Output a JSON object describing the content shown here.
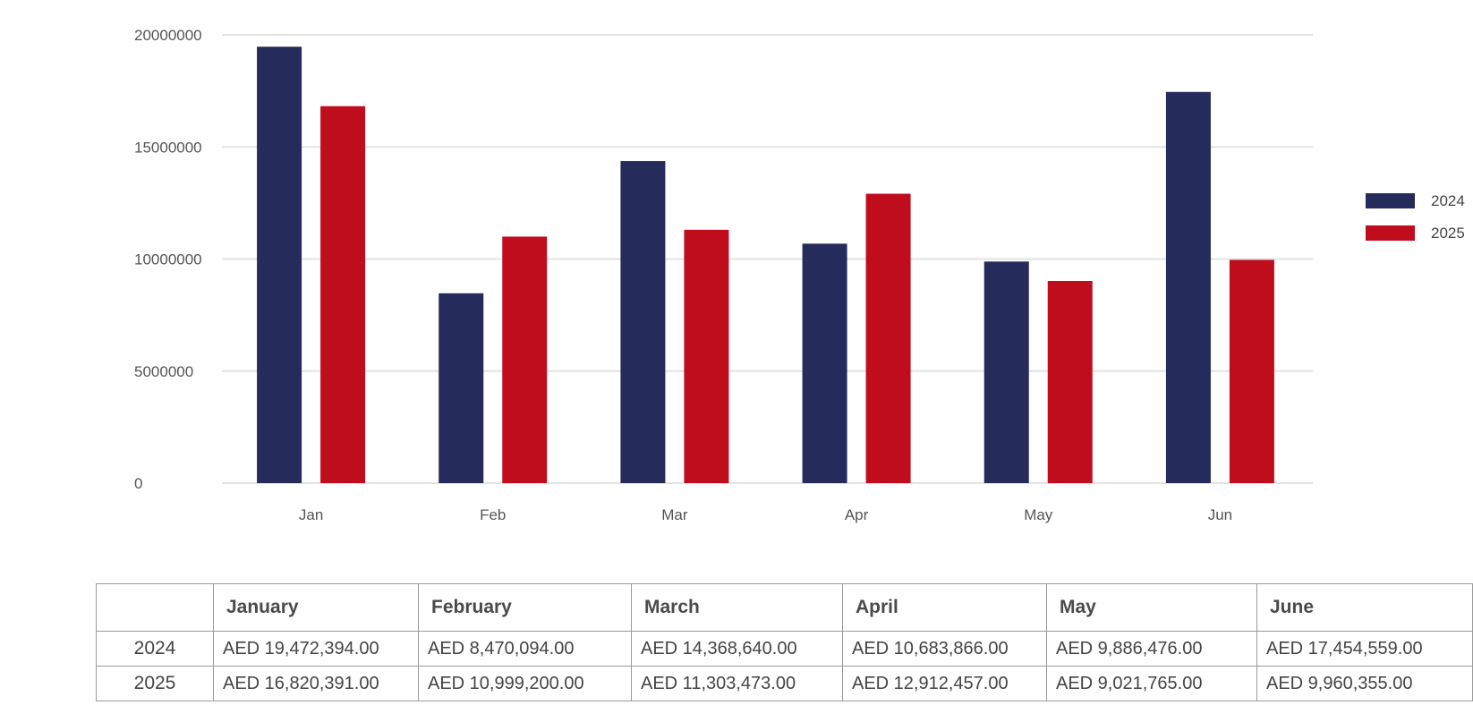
{
  "chart_data": {
    "type": "bar",
    "categories": [
      "Jan",
      "Feb",
      "Mar",
      "Apr",
      "May",
      "Jun"
    ],
    "series": [
      {
        "name": "2024",
        "color": "#252b5a",
        "values": [
          19472394,
          8470094,
          14368640,
          10683866,
          9886476,
          17454559
        ]
      },
      {
        "name": "2025",
        "color": "#bf0d1e",
        "values": [
          16820391,
          10999200,
          11303473,
          12912457,
          9021765,
          9960355
        ]
      }
    ],
    "yticks": [
      "0",
      "5000000",
      "10000000",
      "15000000",
      "20000000"
    ],
    "ylim": [
      0,
      20000000
    ],
    "grid": true,
    "legend_position": "right",
    "title": "",
    "xlabel": "",
    "ylabel": ""
  },
  "table": {
    "headers": [
      "",
      "January",
      "February",
      "March",
      "April",
      "May",
      "June"
    ],
    "rows": [
      {
        "label": "2024",
        "cells": [
          "AED 19,472,394.00",
          "AED 8,470,094.00",
          "AED 14,368,640.00",
          "AED 10,683,866.00",
          "AED 9,886,476.00",
          "AED 17,454,559.00"
        ]
      },
      {
        "label": "2025",
        "cells": [
          "AED 16,820,391.00",
          "AED 10,999,200.00",
          "AED 11,303,473.00",
          "AED 12,912,457.00",
          "AED 9,021,765.00",
          "AED 9,960,355.00"
        ]
      }
    ]
  }
}
